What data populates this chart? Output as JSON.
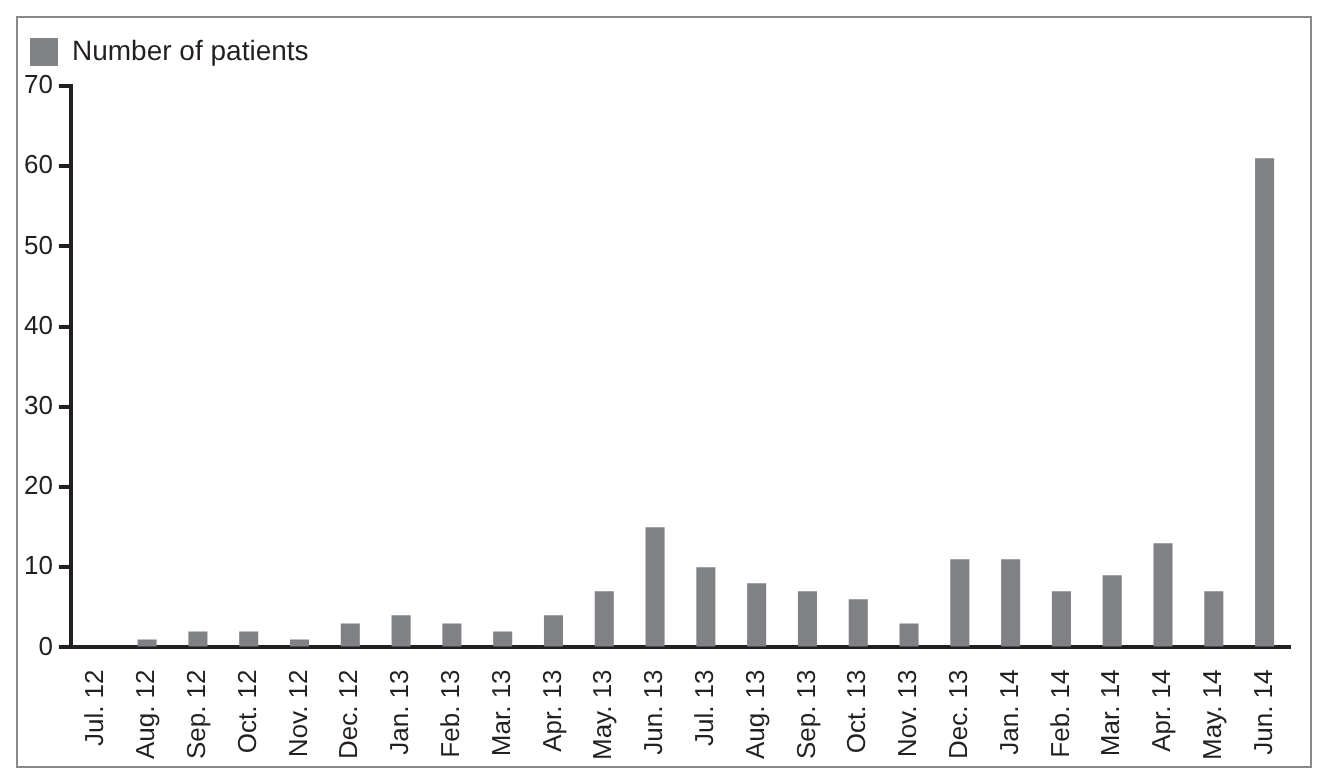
{
  "chart_data": {
    "type": "bar",
    "categories": [
      "Jul. 12",
      "Aug. 12",
      "Sep. 12",
      "Oct. 12",
      "Nov. 12",
      "Dec. 12",
      "Jan. 13",
      "Feb. 13",
      "Mar. 13",
      "Apr. 13",
      "May. 13",
      "Jun. 13",
      "Jul. 13",
      "Aug. 13",
      "Sep. 13",
      "Oct. 13",
      "Nov. 13",
      "Dec. 13",
      "Jan. 14",
      "Feb. 14",
      "Mar. 14",
      "Apr. 14",
      "May. 14",
      "Jun. 14"
    ],
    "series": [
      {
        "name": "Number of patients",
        "color": "#808184",
        "values": [
          0,
          1,
          2,
          2,
          1,
          3,
          4,
          3,
          2,
          4,
          7,
          15,
          10,
          8,
          7,
          6,
          3,
          11,
          11,
          7,
          9,
          13,
          7,
          61
        ]
      }
    ],
    "ylim": [
      0,
      70
    ],
    "yticks": [
      0,
      10,
      20,
      30,
      40,
      50,
      60,
      70
    ],
    "grid": false,
    "legend": "top left"
  }
}
